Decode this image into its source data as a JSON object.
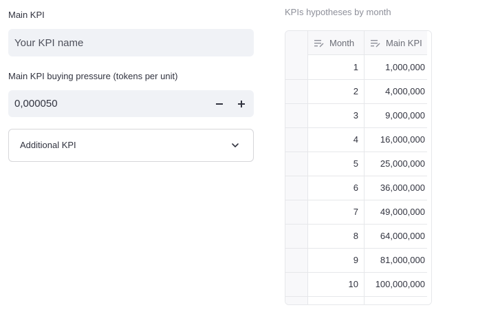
{
  "main_kpi": {
    "label": "Main KPI",
    "placeholder": "Your KPI name"
  },
  "buying_pressure": {
    "label": "Main KPI buying pressure (tokens per unit)",
    "value": "0,000050",
    "decrement_icon": "minus-icon",
    "increment_icon": "plus-icon"
  },
  "expander": {
    "label": "Additional KPI",
    "icon": "chevron-down-icon"
  },
  "table": {
    "title": "KPIs hypotheses by month",
    "columns": [
      "Month",
      "Main KPI"
    ],
    "column_icon": "edit-column-icon",
    "rows": [
      {
        "month": "1",
        "kpi": "1,000,000"
      },
      {
        "month": "2",
        "kpi": "4,000,000"
      },
      {
        "month": "3",
        "kpi": "9,000,000"
      },
      {
        "month": "4",
        "kpi": "16,000,000"
      },
      {
        "month": "5",
        "kpi": "25,000,000"
      },
      {
        "month": "6",
        "kpi": "36,000,000"
      },
      {
        "month": "7",
        "kpi": "49,000,000"
      },
      {
        "month": "8",
        "kpi": "64,000,000"
      },
      {
        "month": "9",
        "kpi": "81,000,000"
      },
      {
        "month": "10",
        "kpi": "100,000,000"
      }
    ]
  }
}
